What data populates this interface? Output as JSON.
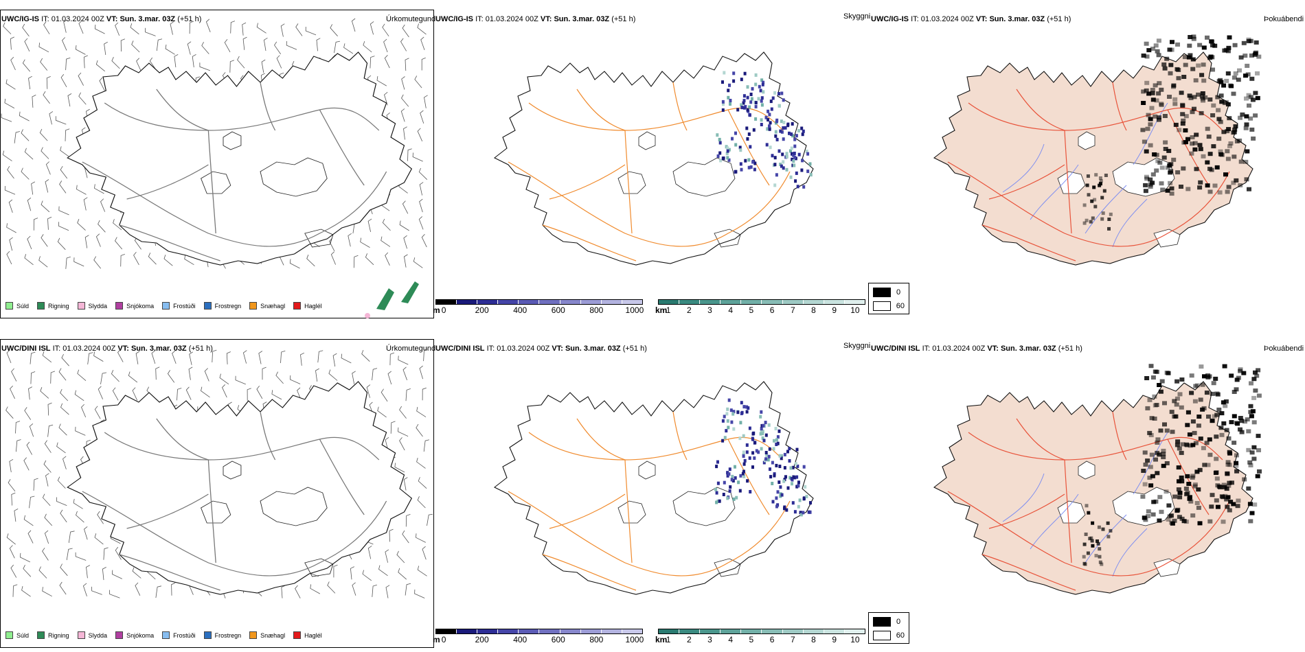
{
  "rows": [
    {
      "model": "UWC/IG-IS",
      "it_label": "IT:",
      "it_value": "01.03.2024 00Z",
      "vt_label": "VT:",
      "vt_value": "Sun. 3.mar. 03Z",
      "lead": "(+51 h)"
    },
    {
      "model": "UWC/DINI ISL",
      "it_label": "IT:",
      "it_value": "01.03.2024 00Z",
      "vt_label": "VT:",
      "vt_value": "Sun. 3.mar. 03Z",
      "lead": "(+51 h)"
    }
  ],
  "panel_titles": {
    "precip": "Úrkomutegund",
    "visibility": "Skyggni",
    "fog": "Þokuábendi"
  },
  "precip_legend": [
    {
      "label": "Súld",
      "color": "#90ee90"
    },
    {
      "label": "Rigning",
      "color": "#2e8b57"
    },
    {
      "label": "Slydda",
      "color": "#f4b6d6"
    },
    {
      "label": "Snjókoma",
      "color": "#b03fa0"
    },
    {
      "label": "Frostúði",
      "color": "#87bdf0"
    },
    {
      "label": "Frostregn",
      "color": "#2b6fbf"
    },
    {
      "label": "Snæhagl",
      "color": "#f0961c"
    },
    {
      "label": "Haglél",
      "color": "#e31a1c"
    }
  ],
  "visibility_m": {
    "unit": "m",
    "ticks": [
      "0",
      "200",
      "400",
      "600",
      "800",
      "1000"
    ],
    "colors": [
      "#000000",
      "#1a1a7a",
      "#2d2d95",
      "#4545a8",
      "#5b5bb5",
      "#7070c0",
      "#8787cc",
      "#9c9cd6",
      "#b3b3e0",
      "#c8c8ea"
    ]
  },
  "visibility_km": {
    "unit": "km",
    "ticks": [
      "1",
      "2",
      "3",
      "4",
      "5",
      "6",
      "7",
      "8",
      "9",
      "10"
    ],
    "colors": [
      "#2a7a70",
      "#3a8a80",
      "#4a968c",
      "#5ea39a",
      "#72b0a8",
      "#88bdb6",
      "#9ecac4",
      "#b4d7d2",
      "#cae4e0",
      "#e0f0ee"
    ]
  },
  "fog_legend": [
    {
      "label": "0",
      "color": "#000000"
    },
    {
      "label": "60",
      "color": "#ffffff"
    }
  ],
  "colors": {
    "roads": "#f08a2c",
    "roads_fog": "#e8533a",
    "rivers": "#7f8ff0",
    "land_fog": "#f3ddd0",
    "coast": "#111111",
    "lakes": "#222222"
  }
}
